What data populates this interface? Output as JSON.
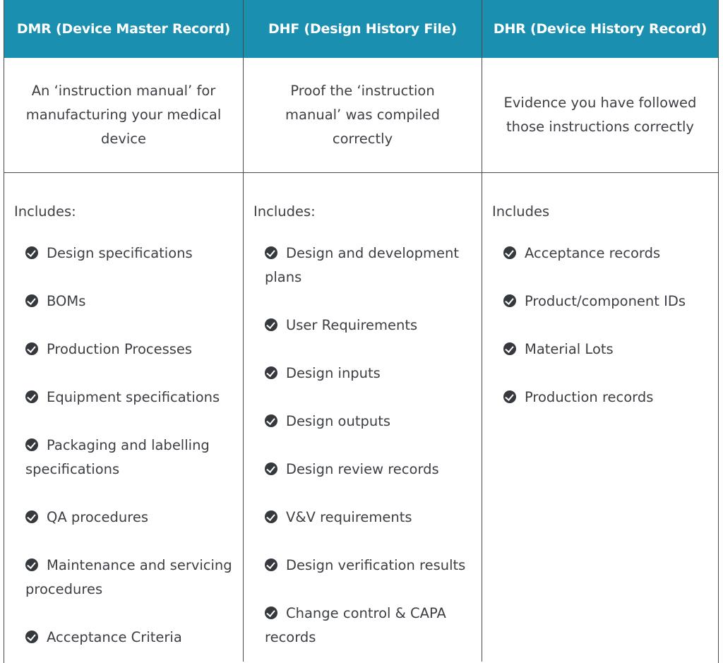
{
  "headers": {
    "dmr": "DMR (Device Master Record)",
    "dhf": "DHF (Design History File)",
    "dhr": "DHR (Device History Record)"
  },
  "descriptions": {
    "dmr": "An ‘instruction manual’ for manufacturing your medical device",
    "dhf": "Proof the ‘instruction manual’ was compiled correctly",
    "dhr": "Evidence you have followed those instructions correctly"
  },
  "includes": {
    "dmr": "Includes:",
    "dhf": "Includes:",
    "dhr": "Includes"
  },
  "icon": "check-circle-icon",
  "colors": {
    "header_bg": "#1a8fb0",
    "header_text": "#ffffff",
    "body_text": "#3c3f44",
    "check": "#35393e"
  },
  "lists": {
    "dmr": [
      "Design specifications",
      "BOMs",
      "Production Processes",
      "Equipment specifications",
      "Packaging and labelling specifications",
      "QA procedures",
      "Maintenance and servicing procedures",
      "Acceptance Criteria"
    ],
    "dhf": [
      "Design and development plans",
      "User Requirements",
      "Design inputs",
      "Design outputs",
      "Design review records",
      "V&V requirements",
      "Design verification results",
      "Change control & CAPA records"
    ],
    "dhr": [
      "Acceptance records",
      "Product/component IDs",
      "Material Lots",
      "Production records"
    ]
  }
}
